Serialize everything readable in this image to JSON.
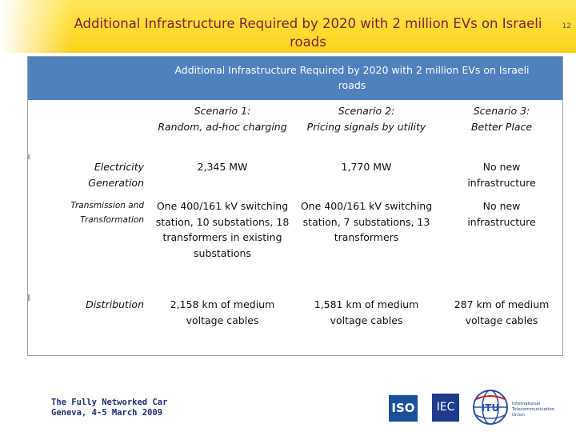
{
  "slide": {
    "title_line1": "Additional Infrastructure Required by 2020 with 2 million EVs on Israeli",
    "title_line2": "roads",
    "page_number": "12"
  },
  "table": {
    "header_line1": "Additional Infrastructure Required by 2020 with 2 million EVs on Israeli",
    "header_line2": "roads",
    "columns": [
      {
        "line1": "Scenario 1:",
        "line2": "Random, ad-hoc charging"
      },
      {
        "line1": "Scenario 2:",
        "line2": "Pricing signals by utility"
      },
      {
        "line1": "Scenario 3:",
        "line2": "Better Place"
      }
    ],
    "rows": [
      {
        "label_line1": "Electricity",
        "label_line2": "Generation",
        "cells": [
          {
            "lines": [
              "2,345 MW"
            ]
          },
          {
            "lines": [
              "1,770 MW"
            ]
          },
          {
            "lines": [
              "No new",
              "infrastructure"
            ]
          }
        ]
      },
      {
        "label_line1": "Transmission and",
        "label_line2": "Transformation",
        "cells": [
          {
            "lines": [
              "One 400/161 kV switching",
              "station, 10 substations, 18",
              "transformers in existing",
              "substations"
            ]
          },
          {
            "lines": [
              "One 400/161 kV switching",
              "station, 7 substations, 13",
              "transformers"
            ]
          },
          {
            "lines": [
              "No new",
              "infrastructure"
            ]
          }
        ]
      },
      {
        "label_line1": "Distribution",
        "label_line2": "",
        "cells": [
          {
            "lines": [
              "2,158 km of medium",
              "voltage cables"
            ]
          },
          {
            "lines": [
              "1,581 km of medium",
              "voltage cables"
            ]
          },
          {
            "lines": [
              "287 km of medium",
              "voltage cables"
            ]
          }
        ]
      }
    ]
  },
  "footer": {
    "line1": "The Fully Networked Car",
    "line2": "Geneva, 4-5 March 2009"
  },
  "logos": {
    "iso": "ISO",
    "iec": "IEC",
    "itu_text": [
      "International",
      "Telecommunication",
      "Union"
    ]
  },
  "colors": {
    "title": "#7a1f3d",
    "header_band": "#ffdb2e",
    "table_header": "#4f81bd"
  }
}
